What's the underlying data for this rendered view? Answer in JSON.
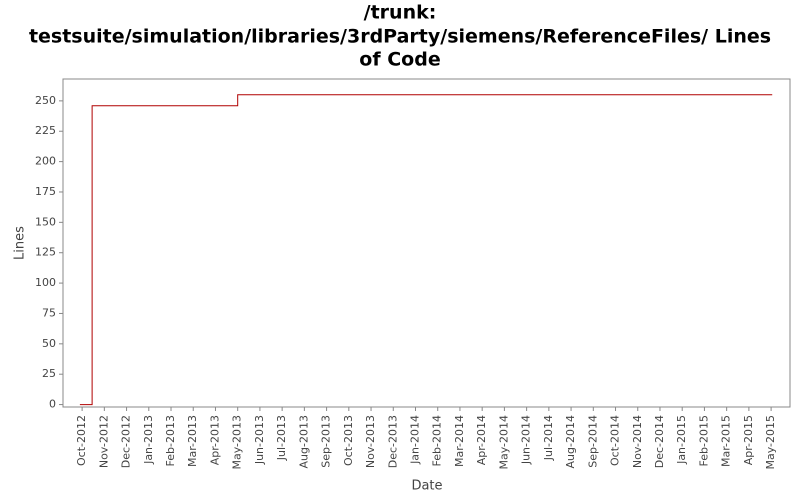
{
  "chart_data": {
    "type": "step",
    "title": [
      "/trunk:",
      "testsuite/simulation/libraries/3rdParty/siemens/ReferenceFiles/ Lines",
      "of Code"
    ],
    "x_label": "Date",
    "y_label": "Lines",
    "series": [
      {
        "color": "#b00000",
        "x": [
          -0.1,
          0.45,
          7,
          31.05
        ],
        "values": [
          0,
          246,
          255,
          255
        ]
      }
    ],
    "xlim": [
      -0.86,
      31.85
    ],
    "xticks": [
      {
        "value": 0,
        "label": "Oct-2012"
      },
      {
        "value": 1,
        "label": "Nov-2012"
      },
      {
        "value": 2,
        "label": "Dec-2012"
      },
      {
        "value": 3,
        "label": "Jan-2013"
      },
      {
        "value": 4,
        "label": "Feb-2013"
      },
      {
        "value": 5,
        "label": "Mar-2013"
      },
      {
        "value": 6,
        "label": "Apr-2013"
      },
      {
        "value": 7,
        "label": "May-2013"
      },
      {
        "value": 8,
        "label": "Jun-2013"
      },
      {
        "value": 9,
        "label": "Jul-2013"
      },
      {
        "value": 10,
        "label": "Aug-2013"
      },
      {
        "value": 11,
        "label": "Sep-2013"
      },
      {
        "value": 12,
        "label": "Oct-2013"
      },
      {
        "value": 13,
        "label": "Nov-2013"
      },
      {
        "value": 14,
        "label": "Dec-2013"
      },
      {
        "value": 15,
        "label": "Jan-2014"
      },
      {
        "value": 16,
        "label": "Feb-2014"
      },
      {
        "value": 17,
        "label": "Mar-2014"
      },
      {
        "value": 18,
        "label": "Apr-2014"
      },
      {
        "value": 19,
        "label": "May-2014"
      },
      {
        "value": 20,
        "label": "Jun-2014"
      },
      {
        "value": 21,
        "label": "Jul-2014"
      },
      {
        "value": 22,
        "label": "Aug-2014"
      },
      {
        "value": 23,
        "label": "Sep-2014"
      },
      {
        "value": 24,
        "label": "Oct-2014"
      },
      {
        "value": 25,
        "label": "Nov-2014"
      },
      {
        "value": 26,
        "label": "Dec-2014"
      },
      {
        "value": 27,
        "label": "Jan-2015"
      },
      {
        "value": 28,
        "label": "Feb-2015"
      },
      {
        "value": 29,
        "label": "Mar-2015"
      },
      {
        "value": 30,
        "label": "Apr-2015"
      },
      {
        "value": 31,
        "label": "May-2015"
      }
    ],
    "ylim": [
      -2,
      268
    ],
    "yticks": [
      0,
      25,
      50,
      75,
      100,
      125,
      150,
      175,
      200,
      225,
      250
    ]
  }
}
